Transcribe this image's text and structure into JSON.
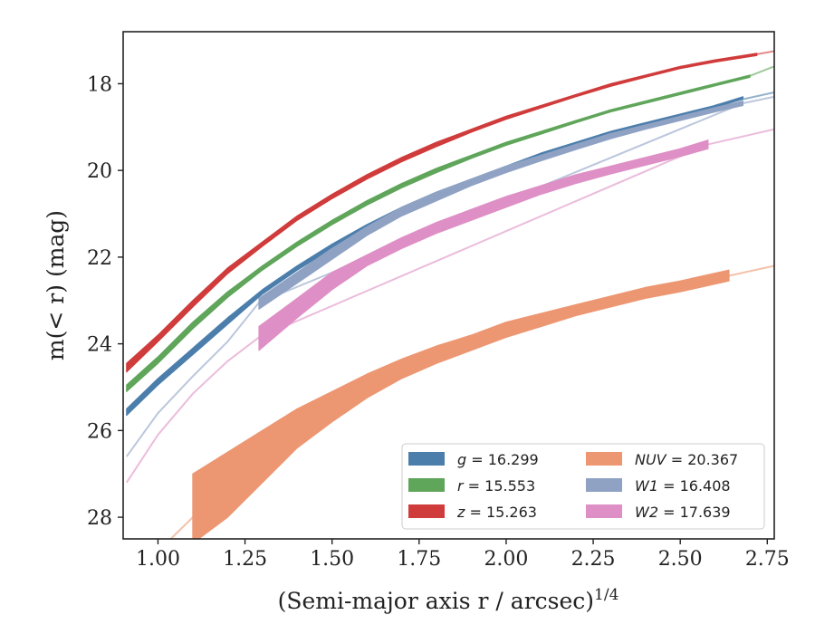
{
  "chart_data": {
    "type": "area",
    "xlabel": "(Semi-major axis r / arcsec)",
    "xlabel_superscript": "1/4",
    "ylabel": "m(< r) (mag)",
    "xlim": [
      0.9,
      2.77
    ],
    "ylim": [
      28.5,
      16.8
    ],
    "y_inverted": true,
    "grid": false,
    "legend_placement": "bottom-right",
    "legend_columns": 2,
    "x_ticks": [
      "1.00",
      "1.25",
      "1.50",
      "1.75",
      "2.00",
      "2.25",
      "2.50",
      "2.75"
    ],
    "y_ticks": [
      "18",
      "20",
      "22",
      "24",
      "26",
      "28"
    ],
    "series": [
      {
        "name": "g",
        "legend_label": "g = 16.299",
        "color": "#4c7eac",
        "x": [
          0.91,
          1.0,
          1.1,
          1.2,
          1.3,
          1.4,
          1.5,
          1.6,
          1.7,
          1.8,
          1.9,
          2.0,
          2.1,
          2.2,
          2.3,
          2.4,
          2.5,
          2.6,
          2.68
        ],
        "y_upper": [
          25.5,
          24.8,
          24.1,
          23.4,
          22.75,
          22.2,
          21.7,
          21.25,
          20.85,
          20.5,
          20.2,
          19.9,
          19.6,
          19.35,
          19.1,
          18.9,
          18.7,
          18.5,
          18.3
        ],
        "y_lower": [
          25.65,
          24.95,
          24.25,
          23.55,
          22.85,
          22.3,
          21.8,
          21.35,
          20.95,
          20.6,
          20.28,
          19.98,
          19.68,
          19.42,
          19.17,
          18.95,
          18.75,
          18.55,
          18.35
        ],
        "extension": {
          "x": [
            2.6,
            2.77
          ],
          "y": [
            18.5,
            18.2
          ]
        }
      },
      {
        "name": "r",
        "legend_label": "r = 15.553",
        "color": "#5fa55a",
        "x": [
          0.91,
          1.0,
          1.1,
          1.2,
          1.3,
          1.4,
          1.5,
          1.6,
          1.7,
          1.8,
          1.9,
          2.0,
          2.1,
          2.2,
          2.3,
          2.4,
          2.5,
          2.6,
          2.7
        ],
        "y_upper": [
          24.95,
          24.3,
          23.5,
          22.8,
          22.2,
          21.65,
          21.15,
          20.7,
          20.3,
          19.95,
          19.65,
          19.35,
          19.1,
          18.85,
          18.6,
          18.4,
          18.2,
          18.0,
          17.8
        ],
        "y_lower": [
          25.1,
          24.45,
          23.65,
          22.93,
          22.3,
          21.75,
          21.25,
          20.8,
          20.4,
          20.05,
          19.72,
          19.42,
          19.16,
          18.9,
          18.65,
          18.45,
          18.25,
          18.05,
          17.85
        ],
        "extension": {
          "x": [
            2.7,
            2.77
          ],
          "y": [
            17.82,
            17.6
          ]
        }
      },
      {
        "name": "z",
        "legend_label": "z = 15.263",
        "color": "#d03b3b",
        "x": [
          0.91,
          1.0,
          1.1,
          1.2,
          1.3,
          1.4,
          1.5,
          1.6,
          1.7,
          1.8,
          1.9,
          2.0,
          2.1,
          2.2,
          2.3,
          2.4,
          2.5,
          2.6,
          2.72
        ],
        "y_upper": [
          24.45,
          23.8,
          23.0,
          22.25,
          21.65,
          21.05,
          20.55,
          20.1,
          19.7,
          19.35,
          19.05,
          18.75,
          18.5,
          18.25,
          18.0,
          17.8,
          17.6,
          17.45,
          17.3
        ],
        "y_lower": [
          24.65,
          23.95,
          23.15,
          22.38,
          21.75,
          21.15,
          20.65,
          20.2,
          19.8,
          19.45,
          19.12,
          18.82,
          18.56,
          18.3,
          18.06,
          17.85,
          17.65,
          17.5,
          17.35
        ],
        "extension": {
          "x": [
            2.72,
            2.77
          ],
          "y": [
            17.32,
            17.25
          ]
        }
      },
      {
        "name": "NUV",
        "legend_label": "NUV = 20.367",
        "color": "#ec9772",
        "x": [
          1.1,
          1.2,
          1.3,
          1.4,
          1.5,
          1.6,
          1.7,
          1.8,
          1.9,
          2.0,
          2.1,
          2.2,
          2.3,
          2.4,
          2.5,
          2.64
        ],
        "y_upper": [
          27.0,
          26.5,
          26.0,
          25.5,
          25.1,
          24.7,
          24.35,
          24.05,
          23.8,
          23.5,
          23.3,
          23.1,
          22.9,
          22.7,
          22.55,
          22.3
        ],
        "y_lower": [
          28.6,
          28.0,
          27.2,
          26.4,
          25.8,
          25.25,
          24.8,
          24.45,
          24.15,
          23.85,
          23.6,
          23.35,
          23.15,
          22.95,
          22.8,
          22.55
        ],
        "extension": {
          "x": [
            0.91,
            1.1,
            1.3,
            1.5,
            1.7,
            1.9,
            2.1,
            2.3,
            2.5,
            2.64,
            2.77
          ],
          "y": [
            29.5,
            28.0,
            26.6,
            25.4,
            24.6,
            24.0,
            23.45,
            23.0,
            22.65,
            22.43,
            22.2
          ]
        }
      },
      {
        "name": "W1",
        "legend_label": "W1 = 16.408",
        "color": "#8fa2c4",
        "x": [
          1.29,
          1.4,
          1.5,
          1.6,
          1.7,
          1.8,
          1.9,
          2.0,
          2.1,
          2.2,
          2.3,
          2.4,
          2.5,
          2.6,
          2.68
        ],
        "y_upper": [
          22.95,
          22.35,
          21.8,
          21.3,
          20.85,
          20.5,
          20.2,
          19.9,
          19.65,
          19.4,
          19.15,
          18.95,
          18.75,
          18.55,
          18.4
        ],
        "y_lower": [
          23.2,
          22.6,
          22.05,
          21.5,
          21.05,
          20.7,
          20.35,
          20.05,
          19.78,
          19.52,
          19.27,
          19.05,
          18.85,
          18.65,
          18.5
        ],
        "extension": {
          "x": [
            0.91,
            1.0,
            1.1,
            1.2,
            1.29,
            2.68,
            2.77
          ],
          "y": [
            26.6,
            25.6,
            24.75,
            23.95,
            23.05,
            18.45,
            18.3
          ]
        }
      },
      {
        "name": "W2",
        "legend_label": "W2 = 17.639",
        "color": "#de8fc5",
        "x": [
          1.29,
          1.4,
          1.5,
          1.6,
          1.7,
          1.8,
          1.9,
          2.0,
          2.1,
          2.2,
          2.3,
          2.4,
          2.5,
          2.58
        ],
        "y_upper": [
          23.6,
          22.95,
          22.35,
          21.95,
          21.55,
          21.2,
          20.9,
          20.6,
          20.35,
          20.1,
          19.9,
          19.7,
          19.5,
          19.3
        ],
        "y_lower": [
          24.15,
          23.4,
          22.75,
          22.2,
          21.8,
          21.45,
          21.15,
          20.85,
          20.55,
          20.3,
          20.08,
          19.88,
          19.68,
          19.5
        ],
        "extension": {
          "x": [
            0.91,
            1.0,
            1.1,
            1.2,
            1.29,
            2.58,
            2.77
          ],
          "y": [
            27.2,
            26.1,
            25.15,
            24.4,
            23.85,
            19.4,
            19.05
          ]
        }
      }
    ]
  }
}
